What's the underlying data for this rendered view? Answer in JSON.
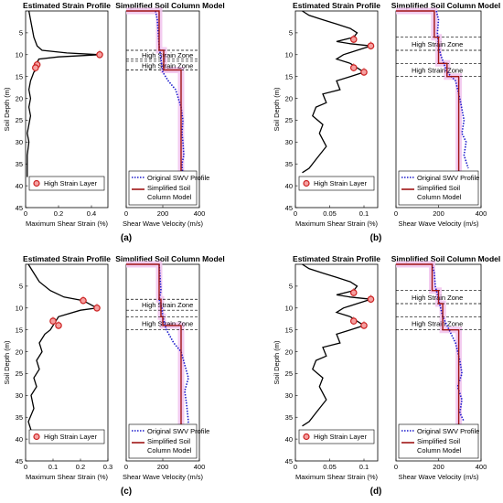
{
  "panel_titles": {
    "strain": "Estimated Strain Profile",
    "model": "Simplified Soil Column Model"
  },
  "labels": {
    "ylabel": "Soil Depth (m)",
    "strain_xlabel": "Maximum Shear Strain (%)",
    "swv_xlabel": "Shear Wave Velocity (m/s)",
    "zone_label": "High Strain Zone",
    "strain_legend": "High Strain Layer",
    "swv_legend_original": "Original SWV Profile",
    "swv_legend_simplified_1": "Simplified Soil",
    "swv_legend_simplified_2": "Column Model"
  },
  "colors": {
    "strain_line": "#000000",
    "marker": "#cc2222",
    "original": "#1a1acc",
    "simplified": "#a01515",
    "band": "#f2c6ee",
    "zone_line": "#000000"
  },
  "chart_data": [
    {
      "panel": "(a)",
      "type": "line",
      "strain": {
        "title": "Estimated Strain Profile",
        "xlabel": "Maximum Shear Strain (%)",
        "ylabel": "Soil Depth (m)",
        "xlim": [
          0,
          0.5
        ],
        "xticks": [
          0,
          0.2,
          0.4
        ],
        "ylim": [
          0,
          45
        ],
        "yticks": [
          5,
          10,
          15,
          20,
          25,
          30,
          35,
          40,
          45
        ],
        "legend": "High Strain Layer",
        "legend_position": "bottom",
        "profile": [
          [
            0.02,
            0
          ],
          [
            0.03,
            2
          ],
          [
            0.04,
            4
          ],
          [
            0.05,
            6
          ],
          [
            0.07,
            8
          ],
          [
            0.1,
            9
          ],
          [
            0.25,
            9.6
          ],
          [
            0.45,
            10
          ],
          [
            0.2,
            10.5
          ],
          [
            0.08,
            11
          ],
          [
            0.07,
            12
          ],
          [
            0.05,
            12.8
          ],
          [
            0.07,
            13.3
          ],
          [
            0.05,
            14
          ],
          [
            0.04,
            15
          ],
          [
            0.03,
            16
          ],
          [
            0.02,
            18
          ],
          [
            0.03,
            20
          ],
          [
            0.02,
            22
          ],
          [
            0.03,
            24
          ],
          [
            0.02,
            26
          ],
          [
            0.01,
            28
          ],
          [
            0.02,
            30
          ],
          [
            0.01,
            33
          ],
          [
            0.01,
            35
          ],
          [
            0.01,
            38
          ]
        ],
        "markers": [
          [
            0.45,
            10
          ],
          [
            0.07,
            12.3
          ],
          [
            0.06,
            13
          ]
        ]
      },
      "swv": {
        "title": "Simplified Soil Column Model",
        "xlabel": "Shear Wave Velocity (m/s)",
        "xlim": [
          0,
          400
        ],
        "xticks": [
          0,
          200,
          400
        ],
        "ylim": [
          0,
          45
        ],
        "legend_position": "bottom",
        "original": [
          [
            160,
            0
          ],
          [
            170,
            2
          ],
          [
            175,
            5
          ],
          [
            180,
            8
          ],
          [
            190,
            11
          ],
          [
            200,
            14
          ],
          [
            230,
            16
          ],
          [
            270,
            18
          ],
          [
            300,
            22
          ],
          [
            310,
            25
          ],
          [
            305,
            28
          ],
          [
            310,
            30
          ],
          [
            315,
            33
          ],
          [
            305,
            35
          ],
          [
            310,
            38
          ]
        ],
        "simplified": [
          [
            0,
            0
          ],
          [
            180,
            0
          ],
          [
            180,
            9
          ],
          [
            205,
            9
          ],
          [
            205,
            13.5
          ],
          [
            300,
            13.5
          ],
          [
            300,
            38
          ]
        ],
        "zones": [
          [
            9,
            11
          ],
          [
            11.5,
            13.5
          ]
        ]
      }
    },
    {
      "panel": "(b)",
      "type": "line",
      "strain": {
        "title": "Estimated Strain Profile",
        "xlabel": "Maximum Shear Strain (%)",
        "ylabel": "Soil Depth (m)",
        "xlim": [
          0,
          0.12
        ],
        "xticks": [
          0,
          0.05,
          0.1
        ],
        "ylim": [
          0,
          45
        ],
        "yticks": [
          5,
          10,
          15,
          20,
          25,
          30,
          35,
          40,
          45
        ],
        "legend": "High Strain Layer",
        "legend_position": "bottom",
        "profile": [
          [
            0.01,
            0
          ],
          [
            0.02,
            1
          ],
          [
            0.04,
            2
          ],
          [
            0.06,
            3
          ],
          [
            0.08,
            4
          ],
          [
            0.09,
            5
          ],
          [
            0.085,
            6
          ],
          [
            0.06,
            7
          ],
          [
            0.08,
            7.5
          ],
          [
            0.11,
            8
          ],
          [
            0.09,
            9
          ],
          [
            0.07,
            10
          ],
          [
            0.06,
            11
          ],
          [
            0.08,
            12
          ],
          [
            0.1,
            14
          ],
          [
            0.08,
            15
          ],
          [
            0.06,
            16
          ],
          [
            0.065,
            18
          ],
          [
            0.04,
            19
          ],
          [
            0.045,
            21
          ],
          [
            0.03,
            22
          ],
          [
            0.025,
            24
          ],
          [
            0.04,
            26
          ],
          [
            0.035,
            28
          ],
          [
            0.045,
            31
          ],
          [
            0.03,
            34
          ],
          [
            0.02,
            36
          ],
          [
            0.01,
            37
          ]
        ],
        "markers": [
          [
            0.085,
            6.5
          ],
          [
            0.11,
            8
          ],
          [
            0.085,
            13
          ],
          [
            0.1,
            14
          ]
        ]
      },
      "swv": {
        "title": "Simplified Soil Column Model",
        "xlabel": "Shear Wave Velocity (m/s)",
        "xlim": [
          0,
          400
        ],
        "xticks": [
          0,
          200,
          400
        ],
        "ylim": [
          0,
          45
        ],
        "legend_position": "bottom",
        "original": [
          [
            190,
            0
          ],
          [
            200,
            2
          ],
          [
            195,
            5
          ],
          [
            200,
            8
          ],
          [
            210,
            10
          ],
          [
            225,
            12
          ],
          [
            240,
            14
          ],
          [
            280,
            16
          ],
          [
            300,
            20
          ],
          [
            320,
            25
          ],
          [
            310,
            28
          ],
          [
            330,
            30
          ],
          [
            320,
            33
          ],
          [
            340,
            36
          ]
        ],
        "simplified": [
          [
            0,
            0
          ],
          [
            180,
            0
          ],
          [
            180,
            6
          ],
          [
            200,
            6
          ],
          [
            200,
            12
          ],
          [
            240,
            12
          ],
          [
            240,
            15
          ],
          [
            295,
            15
          ],
          [
            295,
            37
          ]
        ],
        "zones": [
          [
            6,
            9
          ],
          [
            12,
            15
          ]
        ]
      }
    },
    {
      "panel": "(c)",
      "type": "line",
      "strain": {
        "title": "Estimated Strain Profile",
        "xlabel": "Maximum Shear Strain (%)",
        "ylabel": "Soil Depth (m)",
        "xlim": [
          0,
          0.3
        ],
        "xticks": [
          0,
          0.1,
          0.2,
          0.3
        ],
        "ylim": [
          0,
          45
        ],
        "yticks": [
          5,
          10,
          15,
          20,
          25,
          30,
          35,
          40,
          45
        ],
        "legend": "High Strain Layer",
        "legend_position": "bottom",
        "profile": [
          [
            0.01,
            0
          ],
          [
            0.03,
            2
          ],
          [
            0.05,
            4
          ],
          [
            0.09,
            6
          ],
          [
            0.14,
            7.5
          ],
          [
            0.21,
            8.3
          ],
          [
            0.26,
            10
          ],
          [
            0.2,
            10.5
          ],
          [
            0.12,
            12
          ],
          [
            0.11,
            13
          ],
          [
            0.09,
            15
          ],
          [
            0.07,
            16
          ],
          [
            0.05,
            18
          ],
          [
            0.06,
            20
          ],
          [
            0.04,
            22
          ],
          [
            0.05,
            24
          ],
          [
            0.03,
            26
          ],
          [
            0.04,
            28
          ],
          [
            0.02,
            30
          ],
          [
            0.03,
            33
          ],
          [
            0.01,
            36
          ],
          [
            0.02,
            38
          ]
        ],
        "markers": [
          [
            0.21,
            8.3
          ],
          [
            0.26,
            10
          ],
          [
            0.1,
            13
          ],
          [
            0.12,
            14
          ]
        ]
      },
      "swv": {
        "title": "Simplified Soil Column Model",
        "xlabel": "Shear Wave Velocity (m/s)",
        "xlim": [
          0,
          400
        ],
        "xticks": [
          0,
          200,
          400
        ],
        "ylim": [
          0,
          45
        ],
        "legend_position": "bottom",
        "original": [
          [
            180,
            0
          ],
          [
            185,
            3
          ],
          [
            190,
            6
          ],
          [
            180,
            8
          ],
          [
            195,
            10
          ],
          [
            200,
            12
          ],
          [
            220,
            15
          ],
          [
            260,
            18
          ],
          [
            300,
            20
          ],
          [
            320,
            23
          ],
          [
            340,
            26
          ],
          [
            320,
            29
          ],
          [
            330,
            32
          ],
          [
            340,
            36
          ],
          [
            330,
            38
          ]
        ],
        "simplified": [
          [
            0,
            0
          ],
          [
            180,
            0
          ],
          [
            180,
            8
          ],
          [
            190,
            8
          ],
          [
            190,
            12
          ],
          [
            200,
            12
          ],
          [
            200,
            14
          ],
          [
            300,
            14
          ],
          [
            300,
            38
          ]
        ],
        "zones": [
          [
            8,
            10.5
          ],
          [
            12,
            15
          ]
        ]
      }
    },
    {
      "panel": "(d)",
      "type": "line",
      "strain": {
        "title": "Estimated Strain Profile",
        "xlabel": "Maximum Shear Strain (%)",
        "ylabel": "Soil Depth (m)",
        "xlim": [
          0,
          0.12
        ],
        "xticks": [
          0,
          0.05,
          0.1
        ],
        "ylim": [
          0,
          45
        ],
        "yticks": [
          5,
          10,
          15,
          20,
          25,
          30,
          35,
          40,
          45
        ],
        "legend": "High Strain Layer",
        "legend_position": "bottom",
        "profile": [
          [
            0.01,
            0
          ],
          [
            0.02,
            1
          ],
          [
            0.04,
            2
          ],
          [
            0.06,
            3
          ],
          [
            0.08,
            4
          ],
          [
            0.09,
            5
          ],
          [
            0.085,
            6
          ],
          [
            0.06,
            7
          ],
          [
            0.08,
            7.5
          ],
          [
            0.11,
            8
          ],
          [
            0.09,
            9
          ],
          [
            0.07,
            10
          ],
          [
            0.06,
            11
          ],
          [
            0.08,
            12
          ],
          [
            0.1,
            14
          ],
          [
            0.08,
            15
          ],
          [
            0.06,
            16
          ],
          [
            0.065,
            18
          ],
          [
            0.04,
            19
          ],
          [
            0.045,
            21
          ],
          [
            0.03,
            22
          ],
          [
            0.025,
            24
          ],
          [
            0.04,
            26
          ],
          [
            0.035,
            28
          ],
          [
            0.045,
            31
          ],
          [
            0.03,
            34
          ],
          [
            0.02,
            36
          ],
          [
            0.01,
            37
          ]
        ],
        "markers": [
          [
            0.085,
            6.5
          ],
          [
            0.11,
            8
          ],
          [
            0.085,
            13
          ],
          [
            0.1,
            14
          ]
        ]
      },
      "swv": {
        "title": "Simplified Soil Column Model",
        "xlabel": "Shear Wave Velocity (m/s)",
        "xlim": [
          0,
          400
        ],
        "xticks": [
          0,
          200,
          400
        ],
        "ylim": [
          0,
          45
        ],
        "legend_position": "bottom",
        "original": [
          [
            170,
            0
          ],
          [
            180,
            2
          ],
          [
            185,
            5
          ],
          [
            200,
            8
          ],
          [
            210,
            10
          ],
          [
            220,
            12
          ],
          [
            240,
            14
          ],
          [
            260,
            16
          ],
          [
            280,
            18
          ],
          [
            300,
            22
          ],
          [
            310,
            25
          ],
          [
            290,
            28
          ],
          [
            310,
            31
          ],
          [
            300,
            34
          ],
          [
            320,
            36
          ]
        ],
        "simplified": [
          [
            0,
            0
          ],
          [
            170,
            0
          ],
          [
            170,
            6
          ],
          [
            200,
            6
          ],
          [
            200,
            9
          ],
          [
            220,
            9
          ],
          [
            220,
            15
          ],
          [
            295,
            15
          ],
          [
            295,
            37
          ]
        ],
        "zones": [
          [
            6,
            9
          ],
          [
            12,
            15
          ]
        ]
      }
    }
  ]
}
